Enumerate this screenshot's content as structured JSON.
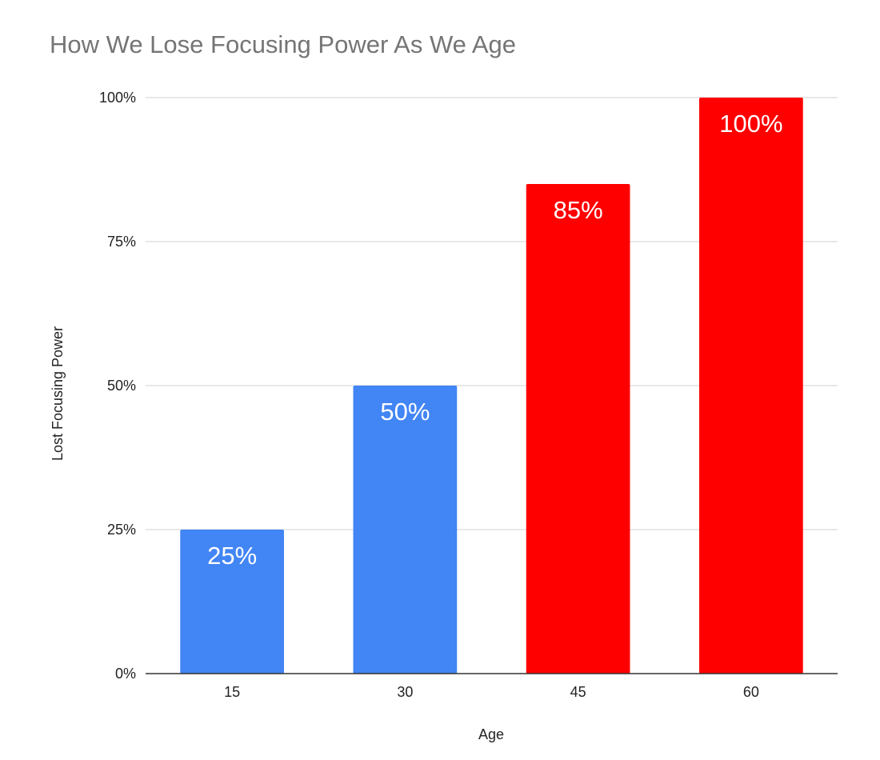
{
  "chart_data": {
    "type": "bar",
    "title": "How We Lose Focusing Power As We Age",
    "xlabel": "Age",
    "ylabel": "Lost Focusing Power",
    "categories": [
      "15",
      "30",
      "45",
      "60"
    ],
    "values": [
      25,
      50,
      85,
      100
    ],
    "data_labels": [
      "25%",
      "50%",
      "85%",
      "100%"
    ],
    "bar_colors": [
      "#4285f4",
      "#4285f4",
      "#ff0000",
      "#ff0000"
    ],
    "ylim": [
      0,
      100
    ],
    "yticks": [
      0,
      25,
      50,
      75,
      100
    ],
    "ytick_labels": [
      "0%",
      "25%",
      "50%",
      "75%",
      "100%"
    ],
    "grid": true,
    "legend": "none",
    "colors": {
      "gridline": "#d9d9d9",
      "baseline": "#333333",
      "title": "#757575"
    }
  }
}
